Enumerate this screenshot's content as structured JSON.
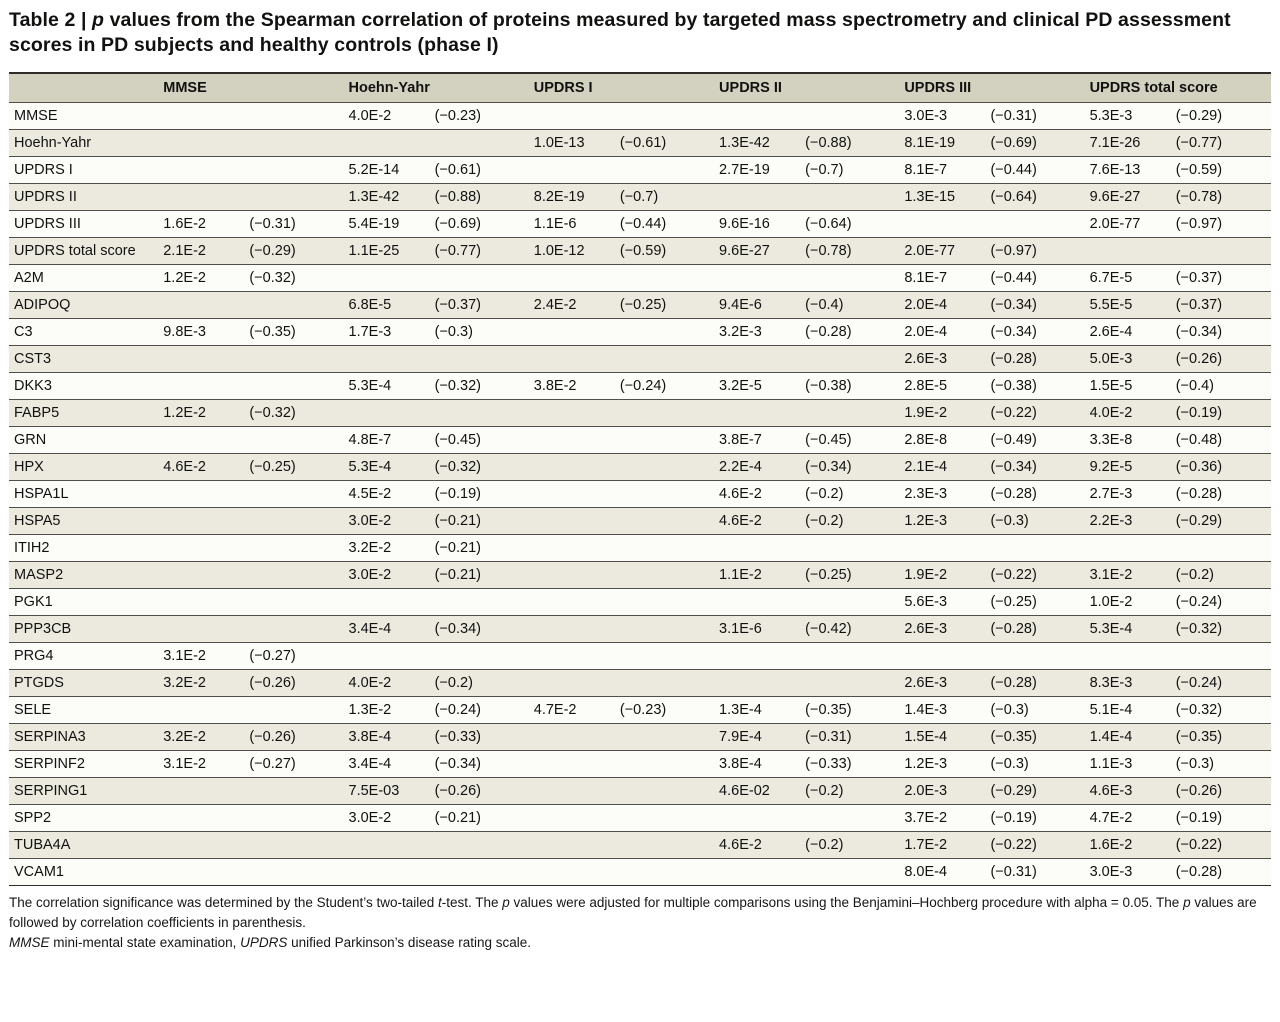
{
  "title": {
    "segments": [
      {
        "text": "Table 2 | ",
        "italic": false
      },
      {
        "text": "p",
        "italic": true
      },
      {
        "text": " values from the Spearman correlation of proteins measured by targeted mass spectrometry and clinical PD assessment scores in PD subjects and healthy controls (phase I)",
        "italic": false
      }
    ]
  },
  "table": {
    "corner_label": "",
    "group_columns": [
      {
        "label": "MMSE"
      },
      {
        "label": "Hoehn-Yahr"
      },
      {
        "label": "UPDRS I"
      },
      {
        "label": "UPDRS II"
      },
      {
        "label": "UPDRS III"
      },
      {
        "label": "UPDRS total score"
      }
    ],
    "rows": [
      {
        "label": "MMSE",
        "values": [
          [
            "",
            ""
          ],
          [
            "4.0E-2",
            "(−0.23)"
          ],
          [
            "",
            ""
          ],
          [
            "",
            ""
          ],
          [
            "3.0E-3",
            "(−0.31)"
          ],
          [
            "5.3E-3",
            "(−0.29)"
          ]
        ]
      },
      {
        "label": "Hoehn-Yahr",
        "values": [
          [
            "",
            ""
          ],
          [
            "",
            ""
          ],
          [
            "1.0E-13",
            "(−0.61)"
          ],
          [
            "1.3E-42",
            "(−0.88)"
          ],
          [
            "8.1E-19",
            "(−0.69)"
          ],
          [
            "7.1E-26",
            "(−0.77)"
          ]
        ]
      },
      {
        "label": "UPDRS I",
        "values": [
          [
            "",
            ""
          ],
          [
            "5.2E-14",
            "(−0.61)"
          ],
          [
            "",
            ""
          ],
          [
            "2.7E-19",
            "(−0.7)"
          ],
          [
            "8.1E-7",
            "(−0.44)"
          ],
          [
            "7.6E-13",
            "(−0.59)"
          ]
        ]
      },
      {
        "label": "UPDRS II",
        "values": [
          [
            "",
            ""
          ],
          [
            "1.3E-42",
            "(−0.88)"
          ],
          [
            "8.2E-19",
            "(−0.7)"
          ],
          [
            "",
            ""
          ],
          [
            "1.3E-15",
            "(−0.64)"
          ],
          [
            "9.6E-27",
            "(−0.78)"
          ]
        ]
      },
      {
        "label": "UPDRS III",
        "values": [
          [
            "1.6E-2",
            "(−0.31)"
          ],
          [
            "5.4E-19",
            "(−0.69)"
          ],
          [
            "1.1E-6",
            "(−0.44)"
          ],
          [
            "9.6E-16",
            "(−0.64)"
          ],
          [
            "",
            ""
          ],
          [
            "2.0E-77",
            "(−0.97)"
          ]
        ]
      },
      {
        "label": "UPDRS total score",
        "values": [
          [
            "2.1E-2",
            "(−0.29)"
          ],
          [
            "1.1E-25",
            "(−0.77)"
          ],
          [
            "1.0E-12",
            "(−0.59)"
          ],
          [
            "9.6E-27",
            "(−0.78)"
          ],
          [
            "2.0E-77",
            "(−0.97)"
          ],
          [
            "",
            ""
          ]
        ]
      },
      {
        "label": "A2M",
        "values": [
          [
            "1.2E-2",
            "(−0.32)"
          ],
          [
            "",
            ""
          ],
          [
            "",
            ""
          ],
          [
            "",
            ""
          ],
          [
            "8.1E-7",
            "(−0.44)"
          ],
          [
            "6.7E-5",
            "(−0.37)"
          ]
        ]
      },
      {
        "label": "ADIPOQ",
        "values": [
          [
            "",
            ""
          ],
          [
            "6.8E-5",
            "(−0.37)"
          ],
          [
            "2.4E-2",
            "(−0.25)"
          ],
          [
            "9.4E-6",
            "(−0.4)"
          ],
          [
            "2.0E-4",
            "(−0.34)"
          ],
          [
            "5.5E-5",
            "(−0.37)"
          ]
        ]
      },
      {
        "label": "C3",
        "values": [
          [
            "9.8E-3",
            "(−0.35)"
          ],
          [
            "1.7E-3",
            "(−0.3)"
          ],
          [
            "",
            ""
          ],
          [
            "3.2E-3",
            "(−0.28)"
          ],
          [
            "2.0E-4",
            "(−0.34)"
          ],
          [
            "2.6E-4",
            "(−0.34)"
          ]
        ]
      },
      {
        "label": "CST3",
        "values": [
          [
            "",
            ""
          ],
          [
            "",
            ""
          ],
          [
            "",
            ""
          ],
          [
            "",
            ""
          ],
          [
            "2.6E-3",
            "(−0.28)"
          ],
          [
            "5.0E-3",
            "(−0.26)"
          ]
        ]
      },
      {
        "label": "DKK3",
        "values": [
          [
            "",
            ""
          ],
          [
            "5.3E-4",
            "(−0.32)"
          ],
          [
            "3.8E-2",
            "(−0.24)"
          ],
          [
            "3.2E-5",
            "(−0.38)"
          ],
          [
            "2.8E-5",
            "(−0.38)"
          ],
          [
            "1.5E-5",
            "(−0.4)"
          ]
        ]
      },
      {
        "label": "FABP5",
        "values": [
          [
            "1.2E-2",
            "(−0.32)"
          ],
          [
            "",
            ""
          ],
          [
            "",
            ""
          ],
          [
            "",
            ""
          ],
          [
            "1.9E-2",
            "(−0.22)"
          ],
          [
            "4.0E-2",
            "(−0.19)"
          ]
        ]
      },
      {
        "label": "GRN",
        "values": [
          [
            "",
            ""
          ],
          [
            "4.8E-7",
            "(−0.45)"
          ],
          [
            "",
            ""
          ],
          [
            "3.8E-7",
            "(−0.45)"
          ],
          [
            "2.8E-8",
            "(−0.49)"
          ],
          [
            "3.3E-8",
            "(−0.48)"
          ]
        ]
      },
      {
        "label": "HPX",
        "values": [
          [
            "4.6E-2",
            "(−0.25)"
          ],
          [
            "5.3E-4",
            "(−0.32)"
          ],
          [
            "",
            ""
          ],
          [
            "2.2E-4",
            "(−0.34)"
          ],
          [
            "2.1E-4",
            "(−0.34)"
          ],
          [
            "9.2E-5",
            "(−0.36)"
          ]
        ]
      },
      {
        "label": "HSPA1L",
        "values": [
          [
            "",
            ""
          ],
          [
            "4.5E-2",
            "(−0.19)"
          ],
          [
            "",
            ""
          ],
          [
            "4.6E-2",
            "(−0.2)"
          ],
          [
            "2.3E-3",
            "(−0.28)"
          ],
          [
            "2.7E-3",
            "(−0.28)"
          ]
        ]
      },
      {
        "label": "HSPA5",
        "values": [
          [
            "",
            ""
          ],
          [
            "3.0E-2",
            "(−0.21)"
          ],
          [
            "",
            ""
          ],
          [
            "4.6E-2",
            "(−0.2)"
          ],
          [
            "1.2E-3",
            "(−0.3)"
          ],
          [
            "2.2E-3",
            "(−0.29)"
          ]
        ]
      },
      {
        "label": "ITIH2",
        "values": [
          [
            "",
            ""
          ],
          [
            "3.2E-2",
            "(−0.21)"
          ],
          [
            "",
            ""
          ],
          [
            "",
            ""
          ],
          [
            "",
            ""
          ],
          [
            "",
            ""
          ]
        ]
      },
      {
        "label": "MASP2",
        "values": [
          [
            "",
            ""
          ],
          [
            "3.0E-2",
            "(−0.21)"
          ],
          [
            "",
            ""
          ],
          [
            "1.1E-2",
            "(−0.25)"
          ],
          [
            "1.9E-2",
            "(−0.22)"
          ],
          [
            "3.1E-2",
            "(−0.2)"
          ]
        ]
      },
      {
        "label": "PGK1",
        "values": [
          [
            "",
            ""
          ],
          [
            "",
            ""
          ],
          [
            "",
            ""
          ],
          [
            "",
            ""
          ],
          [
            "5.6E-3",
            "(−0.25)"
          ],
          [
            "1.0E-2",
            "(−0.24)"
          ]
        ]
      },
      {
        "label": "PPP3CB",
        "values": [
          [
            "",
            ""
          ],
          [
            "3.4E-4",
            "(−0.34)"
          ],
          [
            "",
            ""
          ],
          [
            "3.1E-6",
            "(−0.42)"
          ],
          [
            "2.6E-3",
            "(−0.28)"
          ],
          [
            "5.3E-4",
            "(−0.32)"
          ]
        ]
      },
      {
        "label": "PRG4",
        "values": [
          [
            "3.1E-2",
            "(−0.27)"
          ],
          [
            "",
            ""
          ],
          [
            "",
            ""
          ],
          [
            "",
            ""
          ],
          [
            "",
            ""
          ],
          [
            "",
            ""
          ]
        ]
      },
      {
        "label": "PTGDS",
        "values": [
          [
            "3.2E-2",
            "(−0.26)"
          ],
          [
            "4.0E-2",
            "(−0.2)"
          ],
          [
            "",
            ""
          ],
          [
            "",
            ""
          ],
          [
            "2.6E-3",
            "(−0.28)"
          ],
          [
            "8.3E-3",
            "(−0.24)"
          ]
        ]
      },
      {
        "label": "SELE",
        "values": [
          [
            "",
            ""
          ],
          [
            "1.3E-2",
            "(−0.24)"
          ],
          [
            "4.7E-2",
            "(−0.23)"
          ],
          [
            "1.3E-4",
            "(−0.35)"
          ],
          [
            "1.4E-3",
            "(−0.3)"
          ],
          [
            "5.1E-4",
            "(−0.32)"
          ]
        ]
      },
      {
        "label": "SERPINA3",
        "values": [
          [
            "3.2E-2",
            "(−0.26)"
          ],
          [
            "3.8E-4",
            "(−0.33)"
          ],
          [
            "",
            ""
          ],
          [
            "7.9E-4",
            "(−0.31)"
          ],
          [
            "1.5E-4",
            "(−0.35)"
          ],
          [
            "1.4E-4",
            "(−0.35)"
          ]
        ]
      },
      {
        "label": "SERPINF2",
        "values": [
          [
            "3.1E-2",
            "(−0.27)"
          ],
          [
            "3.4E-4",
            "(−0.34)"
          ],
          [
            "",
            ""
          ],
          [
            "3.8E-4",
            "(−0.33)"
          ],
          [
            "1.2E-3",
            "(−0.3)"
          ],
          [
            "1.1E-3",
            "(−0.3)"
          ]
        ]
      },
      {
        "label": "SERPING1",
        "values": [
          [
            "",
            ""
          ],
          [
            "7.5E-03",
            "(−0.26)"
          ],
          [
            "",
            ""
          ],
          [
            "4.6E-02",
            "(−0.2)"
          ],
          [
            "2.0E-3",
            "(−0.29)"
          ],
          [
            "4.6E-3",
            "(−0.26)"
          ]
        ]
      },
      {
        "label": "SPP2",
        "values": [
          [
            "",
            ""
          ],
          [
            "3.0E-2",
            "(−0.21)"
          ],
          [
            "",
            ""
          ],
          [
            "",
            ""
          ],
          [
            "3.7E-2",
            "(−0.19)"
          ],
          [
            "4.7E-2",
            "(−0.19)"
          ]
        ]
      },
      {
        "label": "TUBA4A",
        "values": [
          [
            "",
            ""
          ],
          [
            "",
            ""
          ],
          [
            "",
            ""
          ],
          [
            "4.6E-2",
            "(−0.2)"
          ],
          [
            "1.7E-2",
            "(−0.22)"
          ],
          [
            "1.6E-2",
            "(−0.22)"
          ]
        ]
      },
      {
        "label": "VCAM1",
        "values": [
          [
            "",
            ""
          ],
          [
            "",
            ""
          ],
          [
            "",
            ""
          ],
          [
            "",
            ""
          ],
          [
            "8.0E-4",
            "(−0.31)"
          ],
          [
            "3.0E-3",
            "(−0.28)"
          ]
        ]
      }
    ]
  },
  "footnotes": [
    {
      "segments": [
        {
          "text": "The correlation significance was determined by the Student’s two-tailed ",
          "italic": false
        },
        {
          "text": "t",
          "italic": true
        },
        {
          "text": "-test. The ",
          "italic": false
        },
        {
          "text": "p",
          "italic": true
        },
        {
          "text": " values were adjusted for multiple comparisons using the Benjamini–Hochberg procedure with alpha = 0.05. The ",
          "italic": false
        },
        {
          "text": "p",
          "italic": true
        },
        {
          "text": " values are followed by correlation coefficients in parenthesis.",
          "italic": false
        }
      ]
    },
    {
      "segments": [
        {
          "text": "MMSE",
          "italic": true
        },
        {
          "text": " mini-mental state examination, ",
          "italic": false
        },
        {
          "text": "UPDRS",
          "italic": true
        },
        {
          "text": " unified Parkinson’s disease rating scale.",
          "italic": false
        }
      ]
    }
  ],
  "colors": {
    "header_background": "#d3d1c0",
    "row_shaded_background": "#eceadf",
    "row_plain_background": "#fcfcf9",
    "rule_color": "#504f48",
    "text_color": "#111110"
  }
}
